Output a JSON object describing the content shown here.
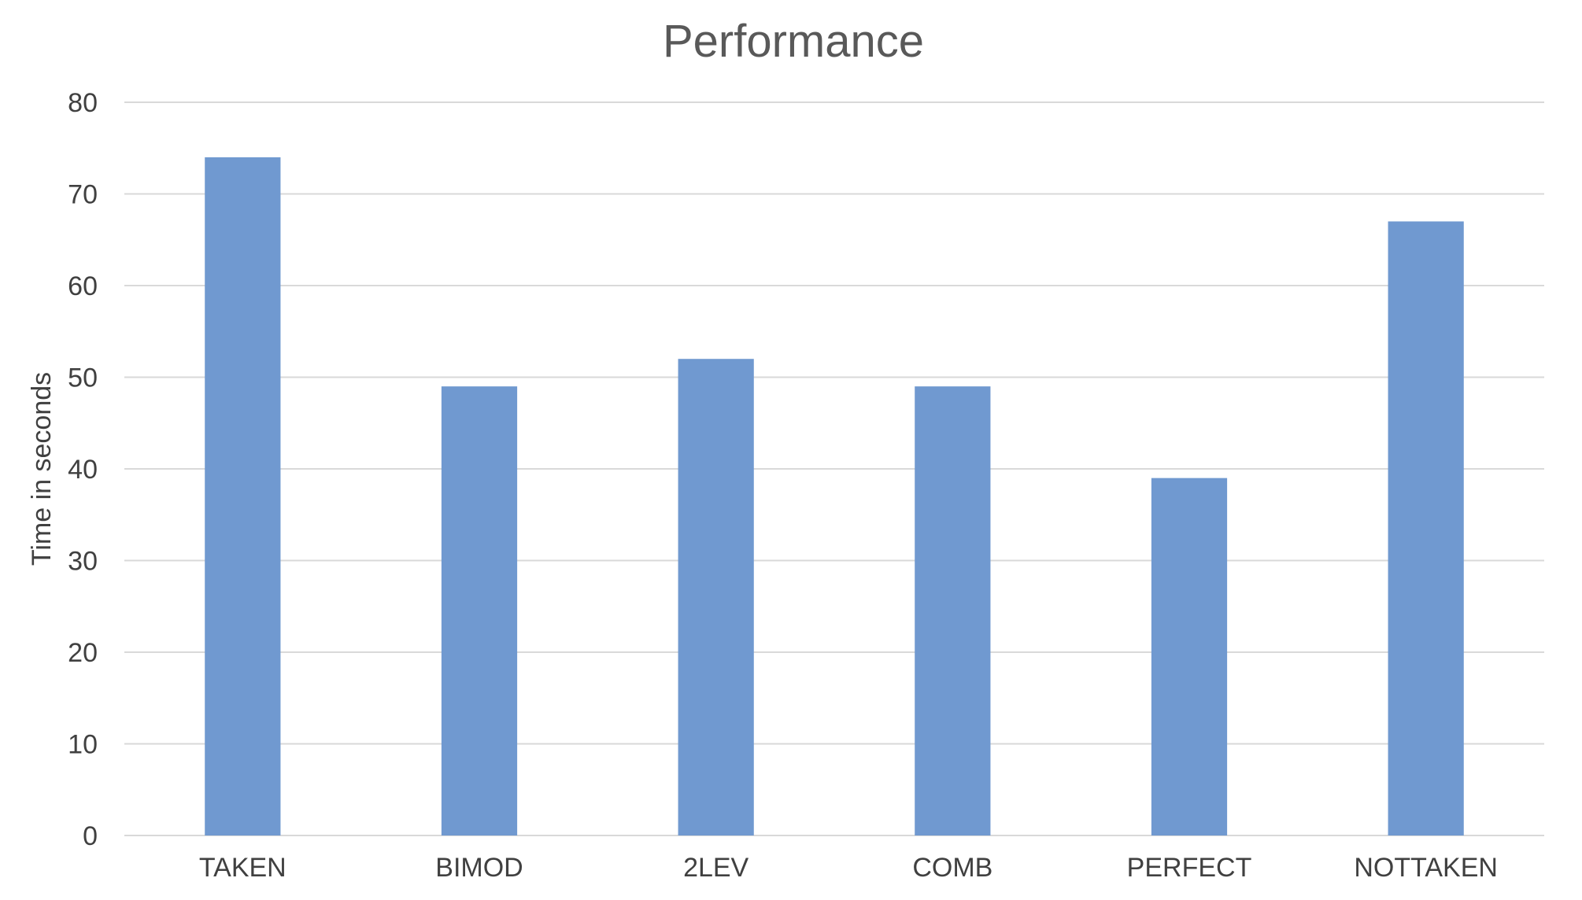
{
  "chart_data": {
    "type": "bar",
    "title": "Performance",
    "xlabel": "",
    "ylabel": "Time in seconds",
    "categories": [
      "TAKEN",
      "BIMOD",
      "2LEV",
      "COMB",
      "PERFECT",
      "NOTTAKEN"
    ],
    "values": [
      74,
      49,
      52,
      49,
      39,
      67
    ],
    "ylim": [
      0,
      80
    ],
    "yticks": [
      "0",
      "10",
      "20",
      "30",
      "40",
      "50",
      "60",
      "70",
      "80"
    ],
    "grid": true,
    "legend": "none",
    "bar_color": "#7099d0"
  }
}
